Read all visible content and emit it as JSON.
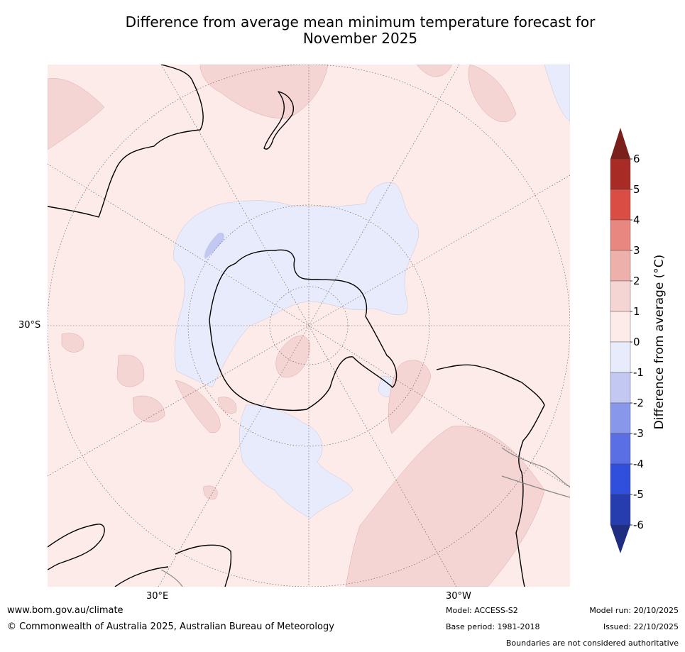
{
  "title_line1": "Difference from average mean minimum temperature forecast for",
  "title_line2": "November 2025",
  "map": {
    "projection": "south-polar-stereographic",
    "lat_label": "30°S",
    "lon_label_left": "30°E",
    "lon_label_right": "30°W"
  },
  "colorbar": {
    "label": "Difference from average (°C)",
    "ticks": [
      "6",
      "5",
      "4",
      "3",
      "2",
      "1",
      "0",
      "-1",
      "-2",
      "-3",
      "-4",
      "-5",
      "-6"
    ],
    "bins": [
      {
        "range": "5 to 6",
        "color": "#a92b26"
      },
      {
        "range": "4 to 5",
        "color": "#d94d45"
      },
      {
        "range": "3 to 4",
        "color": "#e8877f"
      },
      {
        "range": "2 to 3",
        "color": "#eeb0aa"
      },
      {
        "range": "1 to 2",
        "color": "#f5d5d3"
      },
      {
        "range": "0 to 1",
        "color": "#fcebe9"
      },
      {
        "range": "-1 to 0",
        "color": "#e8ebfb"
      },
      {
        "range": "-2 to -1",
        "color": "#c2c8f2"
      },
      {
        "range": "-3 to -2",
        "color": "#8997ea"
      },
      {
        "range": "-4 to -3",
        "color": "#5a6fe4"
      },
      {
        "range": "-5 to -4",
        "color": "#2f4fdc"
      },
      {
        "range": "-6 to -5",
        "color": "#263db0"
      }
    ],
    "above_color": "#7b1f1d",
    "below_color": "#1f2e80"
  },
  "footer": {
    "website": "www.bom.gov.au/climate",
    "copyright": "© Commonwealth of Australia 2025, Australian Bureau of Meteorology",
    "model": "Model: ACCESS-S2",
    "base_period": "Base period: 1981-2018",
    "model_run": "Model run: 20/10/2025",
    "issued": "Issued: 22/10/2025",
    "disclaimer": "Boundaries are not considered authoritative"
  }
}
